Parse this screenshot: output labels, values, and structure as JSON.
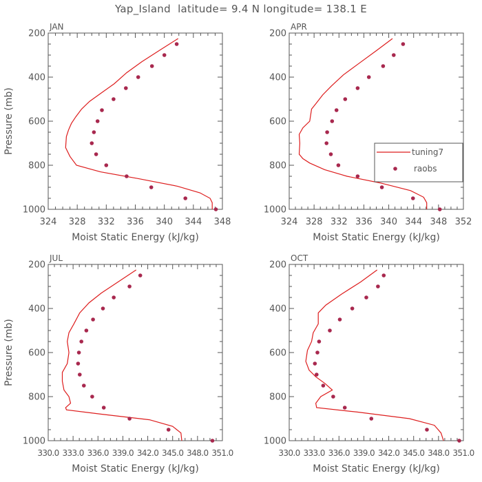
{
  "title": "Yap_Island  latitude= 9.4 N longitude= 138.1 E",
  "colors": {
    "model": "#dd1c1c",
    "obs": "#a8284e",
    "axis": "#555555"
  },
  "legend": {
    "model_label": "tuning7",
    "obs_label": "raobs",
    "location": "right-middle of APR panel"
  },
  "chart_data": [
    {
      "type": "line",
      "panel": "JAN",
      "title": "JAN",
      "xlabel": "Moist Static Energy (kJ/kg)",
      "ylabel": "Pressure (mb)",
      "xlim": [
        324,
        348
      ],
      "ylim": [
        200,
        1000
      ],
      "x_tick_labels": [
        "324",
        "328",
        "332",
        "336",
        "340",
        "344",
        "348"
      ],
      "x_tick_values": [
        324,
        328,
        332,
        336,
        340,
        344,
        348
      ],
      "y_tick_labels": [
        "200",
        "400",
        "600",
        "800",
        "1000"
      ],
      "y_tick_values": [
        200,
        400,
        600,
        800,
        1000
      ],
      "series": [
        {
          "name": "tuning7",
          "style": "line",
          "x": [
            341.9,
            339.5,
            336.9,
            334.8,
            333.1,
            331.4,
            329.7,
            328.6,
            327.8,
            327.2,
            326.8,
            326.5,
            326.4,
            327.0,
            327.9,
            331.2,
            336.3,
            341.8,
            344.9,
            346.3,
            346.6,
            346.6
          ],
          "y": [
            225,
            275,
            330,
            380,
            430,
            470,
            510,
            545,
            580,
            610,
            640,
            670,
            720,
            760,
            800,
            830,
            860,
            895,
            925,
            950,
            970,
            1000
          ]
        },
        {
          "name": "raobs",
          "style": "markers",
          "x": [
            341.7,
            340.0,
            338.3,
            336.4,
            334.7,
            333.0,
            331.4,
            330.8,
            330.3,
            330.0,
            330.6,
            332.0,
            334.8,
            338.2,
            342.9,
            347.1
          ],
          "y": [
            250,
            300,
            350,
            400,
            450,
            500,
            550,
            600,
            650,
            700,
            750,
            800,
            850,
            900,
            950,
            1000
          ]
        }
      ]
    },
    {
      "type": "line",
      "panel": "APR",
      "title": "APR",
      "xlabel": "Moist Static Energy (kJ/kg)",
      "ylabel": "",
      "xlim": [
        324,
        352
      ],
      "ylim": [
        200,
        1000
      ],
      "x_tick_labels": [
        "324",
        "328",
        "332",
        "336",
        "340",
        "344",
        "348",
        "352"
      ],
      "x_tick_values": [
        324,
        328,
        332,
        336,
        340,
        344,
        348,
        352
      ],
      "y_tick_labels": [
        "200",
        "400",
        "600",
        "800",
        "1000"
      ],
      "y_tick_values": [
        200,
        400,
        600,
        800,
        1000
      ],
      "series": [
        {
          "name": "tuning7",
          "style": "line",
          "x": [
            340.6,
            338.0,
            335.1,
            332.7,
            330.8,
            329.4,
            328.3,
            327.6,
            327.3,
            326.2,
            325.6,
            325.7,
            325.6,
            326.2,
            327.3,
            329.7,
            333.3,
            338.6,
            343.5,
            345.6,
            346.1,
            346.1
          ],
          "y": [
            225,
            280,
            340,
            390,
            440,
            480,
            520,
            545,
            600,
            630,
            660,
            700,
            750,
            770,
            790,
            820,
            850,
            880,
            915,
            945,
            970,
            1000
          ]
        },
        {
          "name": "raobs",
          "style": "markers",
          "x": [
            342.3,
            340.8,
            339.1,
            336.8,
            335.0,
            333.0,
            331.6,
            330.9,
            330.1,
            330.0,
            330.7,
            331.9,
            335.0,
            338.9,
            343.9,
            348.2
          ],
          "y": [
            250,
            300,
            350,
            400,
            450,
            500,
            550,
            600,
            650,
            700,
            750,
            800,
            850,
            900,
            950,
            1000
          ]
        }
      ]
    },
    {
      "type": "line",
      "panel": "JUL",
      "title": "JUL",
      "xlabel": "Moist Static Energy (kJ/kg)",
      "ylabel": "Pressure (mb)",
      "xlim": [
        330.0,
        351.0
      ],
      "ylim": [
        200,
        1000
      ],
      "x_tick_labels": [
        "330.0",
        "333.0",
        "336.0",
        "339.0",
        "342.0",
        "345.0",
        "348.0",
        "351.0"
      ],
      "x_tick_values": [
        330,
        333,
        336,
        339,
        342,
        345,
        348,
        351
      ],
      "y_tick_labels": [
        "200",
        "400",
        "600",
        "800",
        "1000"
      ],
      "y_tick_values": [
        200,
        400,
        600,
        800,
        1000
      ],
      "series": [
        {
          "name": "tuning7",
          "style": "line",
          "x": [
            340.6,
            338.4,
            336.4,
            334.9,
            333.8,
            333.1,
            332.5,
            332.3,
            332.5,
            332.3,
            331.7,
            331.7,
            331.9,
            332.5,
            332.7,
            332.1,
            332.2,
            336.5,
            342.2,
            345.0,
            346.0,
            346.1
          ],
          "y": [
            225,
            280,
            330,
            375,
            420,
            470,
            510,
            550,
            600,
            650,
            690,
            730,
            770,
            800,
            830,
            850,
            860,
            880,
            905,
            935,
            965,
            1000
          ]
        },
        {
          "name": "raobs",
          "style": "markers",
          "x": [
            341.1,
            339.8,
            337.9,
            336.6,
            335.4,
            334.6,
            334.0,
            333.7,
            333.6,
            333.8,
            334.3,
            335.3,
            336.7,
            339.8,
            344.5,
            349.8
          ],
          "y": [
            250,
            300,
            350,
            400,
            450,
            500,
            550,
            600,
            650,
            700,
            750,
            800,
            850,
            900,
            950,
            1000
          ]
        }
      ]
    },
    {
      "type": "line",
      "panel": "OCT",
      "title": "OCT",
      "xlabel": "Moist Static Energy (kJ/kg)",
      "ylabel": "",
      "xlim": [
        330.0,
        351.0
      ],
      "ylim": [
        200,
        1000
      ],
      "x_tick_labels": [
        "330.0",
        "333.0",
        "336.0",
        "339.0",
        "342.0",
        "345.0",
        "348.0",
        "351.0"
      ],
      "x_tick_values": [
        330,
        333,
        336,
        339,
        342,
        345,
        348,
        351
      ],
      "y_tick_labels": [
        "200",
        "400",
        "600",
        "800",
        "1000"
      ],
      "y_tick_values": [
        200,
        400,
        600,
        800,
        1000
      ],
      "series": [
        {
          "name": "tuning7",
          "style": "line",
          "x": [
            340.6,
            338.6,
            336.3,
            334.4,
            333.5,
            333.5,
            332.9,
            332.7,
            332.2,
            332.0,
            332.4,
            333.2,
            334.3,
            335.2,
            333.8,
            333.2,
            333.3,
            338.2,
            344.5,
            347.5,
            348.3,
            348.6
          ],
          "y": [
            225,
            280,
            335,
            385,
            420,
            470,
            510,
            550,
            590,
            640,
            680,
            710,
            740,
            770,
            800,
            830,
            850,
            870,
            900,
            930,
            965,
            1000
          ]
        },
        {
          "name": "raobs",
          "style": "markers",
          "x": [
            341.4,
            340.7,
            339.3,
            337.6,
            336.1,
            334.9,
            333.6,
            333.4,
            333.1,
            333.3,
            334.1,
            335.3,
            336.7,
            339.9,
            346.6,
            350.5
          ],
          "y": [
            250,
            300,
            350,
            400,
            450,
            500,
            550,
            600,
            650,
            700,
            750,
            800,
            850,
            900,
            950,
            1000
          ]
        }
      ]
    }
  ]
}
